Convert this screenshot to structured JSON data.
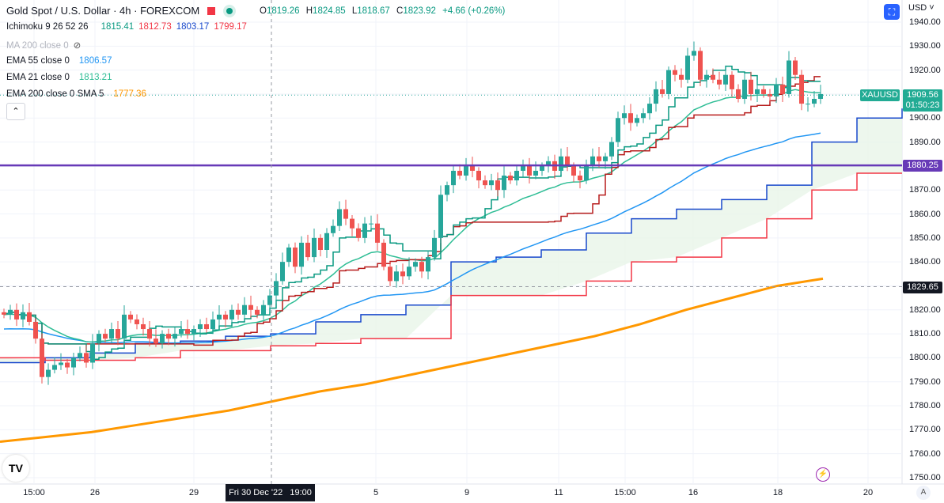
{
  "header": {
    "title": "Gold Spot / U.S. Dollar · 4h · FOREXCOM",
    "open_label": "O",
    "open": "1819.26",
    "high_label": "H",
    "high": "1824.85",
    "low_label": "L",
    "low": "1818.67",
    "close_label": "C",
    "close": "1823.92",
    "change": "+4.66 (+0.26%)"
  },
  "indicators": {
    "ichimoku": {
      "label": "Ichimoku 9 26 52 26",
      "v1": "1815.41",
      "v2": "1812.73",
      "v3": "1803.17",
      "v4": "1799.17"
    },
    "ma200": {
      "label": "MA 200 close 0"
    },
    "ema55": {
      "label": "EMA 55 close 0",
      "value": "1806.57"
    },
    "ema21": {
      "label": "EMA 21 close 0",
      "value": "1813.21"
    },
    "ema200": {
      "label": "EMA 200 close 0 SMA 5",
      "value": "1777.36"
    }
  },
  "axis": {
    "currency": "USD",
    "symbol_tag": "XAUUSD",
    "last_price": "1909.56",
    "countdown": "01:50:23",
    "hline_price": "1880.25",
    "crosshair_price": "1829.65",
    "crosshair_time": "Fri 30 Dec '22   19:00",
    "auto": "A"
  },
  "colors": {
    "up": "#26a69a",
    "down": "#ef5350",
    "tenkan": "#089981",
    "kijun": "#b71c1c",
    "spanA": "#1848cc",
    "spanB": "#f23645",
    "ema21": "#2ebd95",
    "ema55": "#2196f3",
    "ema200": "#ff9800",
    "hline": "#673ab7"
  },
  "chart_data": {
    "type": "candlestick",
    "title": "Gold Spot / U.S. Dollar · 4h · FOREXCOM",
    "ylim": [
      1745,
      1942
    ],
    "yticks": [
      1750,
      1760,
      1770,
      1780,
      1790,
      1800,
      1810,
      1820,
      1830,
      1840,
      1850,
      1860,
      1870,
      1880,
      1890,
      1900,
      1910,
      1920,
      1930,
      1940
    ],
    "xticks": [
      "15:00",
      "26",
      "29",
      "5",
      "9",
      "11",
      "15:00",
      "16",
      "18",
      "20"
    ],
    "closes": [
      1818,
      1820,
      1816,
      1819,
      1815,
      1808,
      1792,
      1795,
      1797,
      1798,
      1796,
      1800,
      1802,
      1798,
      1806,
      1810,
      1808,
      1812,
      1808,
      1818,
      1816,
      1814,
      1812,
      1808,
      1806,
      1810,
      1808,
      1810,
      1812,
      1810,
      1812,
      1814,
      1812,
      1816,
      1818,
      1816,
      1820,
      1818,
      1822,
      1820,
      1818,
      1822,
      1826,
      1832,
      1840,
      1846,
      1838,
      1848,
      1842,
      1850,
      1845,
      1852,
      1855,
      1862,
      1858,
      1854,
      1850,
      1856,
      1856,
      1848,
      1838,
      1832,
      1836,
      1834,
      1838,
      1840,
      1836,
      1842,
      1850,
      1868,
      1872,
      1878,
      1876,
      1880,
      1878,
      1874,
      1872,
      1874,
      1870,
      1876,
      1874,
      1878,
      1880,
      1876,
      1878,
      1880,
      1882,
      1878,
      1884,
      1880,
      1876,
      1874,
      1880,
      1884,
      1882,
      1884,
      1890,
      1900,
      1902,
      1898,
      1900,
      1902,
      1906,
      1912,
      1910,
      1920,
      1918,
      1916,
      1926,
      1928,
      1916,
      1918,
      1916,
      1914,
      1918,
      1912,
      1908,
      1916,
      1910,
      1912,
      1910,
      1909,
      1914,
      1910,
      1924,
      1918,
      1906,
      1906,
      1908,
      1910
    ],
    "ema200": [
      1765,
      1767,
      1769,
      1772,
      1775,
      1778,
      1782,
      1786,
      1789,
      1793,
      1797,
      1801,
      1805,
      1809,
      1814,
      1820,
      1825,
      1830,
      1833
    ],
    "spanA": [
      1798,
      1800,
      1802,
      1806,
      1807,
      1809,
      1810,
      1815,
      1818,
      1822,
      1840,
      1842,
      1845,
      1852,
      1858,
      1862,
      1866,
      1872,
      1890,
      1900,
      1904
    ],
    "spanB": [
      1800,
      1799,
      1799,
      1800,
      1803,
      1803,
      1805,
      1806,
      1808,
      1808,
      1826,
      1826,
      1826,
      1832,
      1840,
      1842,
      1850,
      1858,
      1870,
      1877,
      1877
    ],
    "hline": 1880.25,
    "crosshair_price": 1829.65
  }
}
